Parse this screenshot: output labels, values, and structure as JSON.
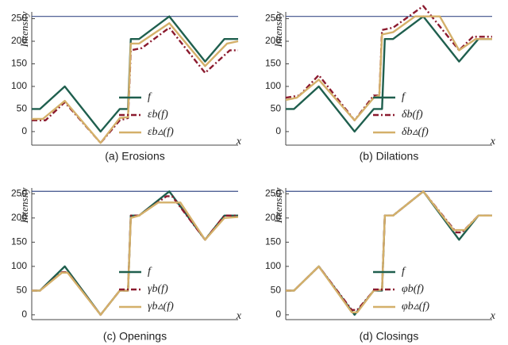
{
  "chart_data": [
    {
      "type": "line",
      "caption": "(a) Erosions",
      "ylabel": "Intensity",
      "xlabel": "x",
      "ylim": [
        -30,
        265
      ],
      "xlim": [
        0,
        75
      ],
      "yticks": [
        0,
        50,
        100,
        150,
        200,
        250
      ],
      "hline": 255,
      "hline_color": "#3b4f8a",
      "legend": "lower right",
      "series": [
        {
          "name": "f",
          "color": "#1f5f4e",
          "dash": false,
          "x": [
            0,
            3,
            12,
            25,
            32,
            35,
            36,
            39,
            50,
            63,
            70,
            75
          ],
          "values": [
            50,
            50,
            100,
            0,
            50,
            50,
            205,
            205,
            255,
            155,
            205,
            205
          ]
        },
        {
          "name": "εb(f)",
          "color": "#8b1a2e",
          "dash": true,
          "x": [
            0,
            5,
            12,
            25,
            32,
            35,
            36,
            40,
            50,
            63,
            72,
            75
          ],
          "values": [
            25,
            25,
            65,
            -25,
            25,
            30,
            180,
            185,
            230,
            130,
            180,
            180
          ]
        },
        {
          "name": "εb▵(f)",
          "color": "#d4b06a",
          "dash": false,
          "x": [
            0,
            4,
            12,
            25,
            32,
            35,
            36,
            39,
            50,
            63,
            71,
            75
          ],
          "values": [
            28,
            28,
            68,
            -25,
            30,
            32,
            195,
            195,
            240,
            145,
            195,
            200
          ]
        }
      ]
    },
    {
      "type": "line",
      "caption": "(b) Dilations",
      "ylabel": "Intensity",
      "xlabel": "x",
      "ylim": [
        -30,
        265
      ],
      "xlim": [
        0,
        75
      ],
      "yticks": [
        0,
        50,
        100,
        150,
        200,
        250
      ],
      "hline": 255,
      "hline_color": "#3b4f8a",
      "legend": "lower right",
      "series": [
        {
          "name": "f",
          "color": "#1f5f4e",
          "dash": false,
          "x": [
            0,
            3,
            12,
            25,
            32,
            35,
            36,
            39,
            50,
            63,
            70,
            75
          ],
          "values": [
            50,
            50,
            100,
            0,
            50,
            50,
            205,
            205,
            255,
            155,
            205,
            205
          ]
        },
        {
          "name": "δb(f)",
          "color": "#8b1a2e",
          "dash": true,
          "x": [
            0,
            5,
            12,
            25,
            32,
            34,
            35,
            39,
            50,
            63,
            68,
            75
          ],
          "values": [
            75,
            80,
            125,
            25,
            80,
            80,
            225,
            230,
            278,
            180,
            210,
            210
          ]
        },
        {
          "name": "δb▵(f)",
          "color": "#d4b06a",
          "dash": false,
          "x": [
            0,
            4,
            12,
            25,
            32,
            34,
            35,
            39,
            47,
            56,
            63,
            69,
            75
          ],
          "values": [
            70,
            75,
            115,
            25,
            75,
            80,
            215,
            220,
            255,
            255,
            180,
            205,
            205
          ]
        }
      ]
    },
    {
      "type": "line",
      "caption": "(c) Openings",
      "ylabel": "Intensity",
      "xlabel": "x",
      "ylim": [
        -10,
        262
      ],
      "xlim": [
        0,
        75
      ],
      "yticks": [
        0,
        50,
        100,
        150,
        200,
        250
      ],
      "hline": 255,
      "hline_color": "#3b4f8a",
      "legend": "lower right",
      "series": [
        {
          "name": "f",
          "color": "#1f5f4e",
          "dash": false,
          "x": [
            0,
            3,
            12,
            25,
            32,
            35,
            36,
            39,
            50,
            63,
            70,
            75
          ],
          "values": [
            50,
            50,
            100,
            0,
            50,
            50,
            205,
            205,
            255,
            155,
            205,
            205
          ]
        },
        {
          "name": "γb(f)",
          "color": "#8b1a2e",
          "dash": true,
          "x": [
            0,
            3,
            11,
            13,
            25,
            32,
            35,
            36,
            39,
            49,
            51,
            63,
            70,
            75
          ],
          "values": [
            50,
            50,
            88,
            88,
            0,
            50,
            50,
            205,
            205,
            245,
            245,
            155,
            205,
            205
          ]
        },
        {
          "name": "γb▵(f)",
          "color": "#d4b06a",
          "dash": false,
          "x": [
            0,
            3,
            11,
            13,
            25,
            32,
            35,
            36,
            39,
            46,
            54,
            63,
            70,
            75
          ],
          "values": [
            50,
            50,
            87,
            87,
            0,
            50,
            50,
            200,
            205,
            232,
            232,
            155,
            200,
            202
          ]
        }
      ]
    },
    {
      "type": "line",
      "caption": "(d) Closings",
      "ylabel": "Intensity",
      "xlabel": "x",
      "ylim": [
        -10,
        262
      ],
      "xlim": [
        0,
        75
      ],
      "yticks": [
        0,
        50,
        100,
        150,
        200,
        250
      ],
      "hline": 255,
      "hline_color": "#3b4f8a",
      "legend": "lower right",
      "series": [
        {
          "name": "f",
          "color": "#1f5f4e",
          "dash": false,
          "x": [
            0,
            3,
            12,
            25,
            32,
            35,
            36,
            39,
            50,
            63,
            70,
            75
          ],
          "values": [
            50,
            50,
            100,
            0,
            50,
            50,
            205,
            205,
            255,
            155,
            205,
            205
          ]
        },
        {
          "name": "φb(f)",
          "color": "#8b1a2e",
          "dash": true,
          "x": [
            0,
            3,
            12,
            24,
            26,
            32,
            35,
            36,
            39,
            50,
            62,
            64,
            70,
            75
          ],
          "values": [
            50,
            50,
            100,
            10,
            10,
            50,
            52,
            205,
            205,
            255,
            170,
            170,
            205,
            205
          ]
        },
        {
          "name": "φb▵(f)",
          "color": "#d4b06a",
          "dash": false,
          "x": [
            0,
            3,
            12,
            24,
            26,
            32,
            35,
            36,
            39,
            50,
            61,
            65,
            70,
            75
          ],
          "values": [
            50,
            50,
            100,
            5,
            5,
            50,
            52,
            205,
            205,
            255,
            175,
            175,
            205,
            205
          ]
        }
      ]
    }
  ]
}
